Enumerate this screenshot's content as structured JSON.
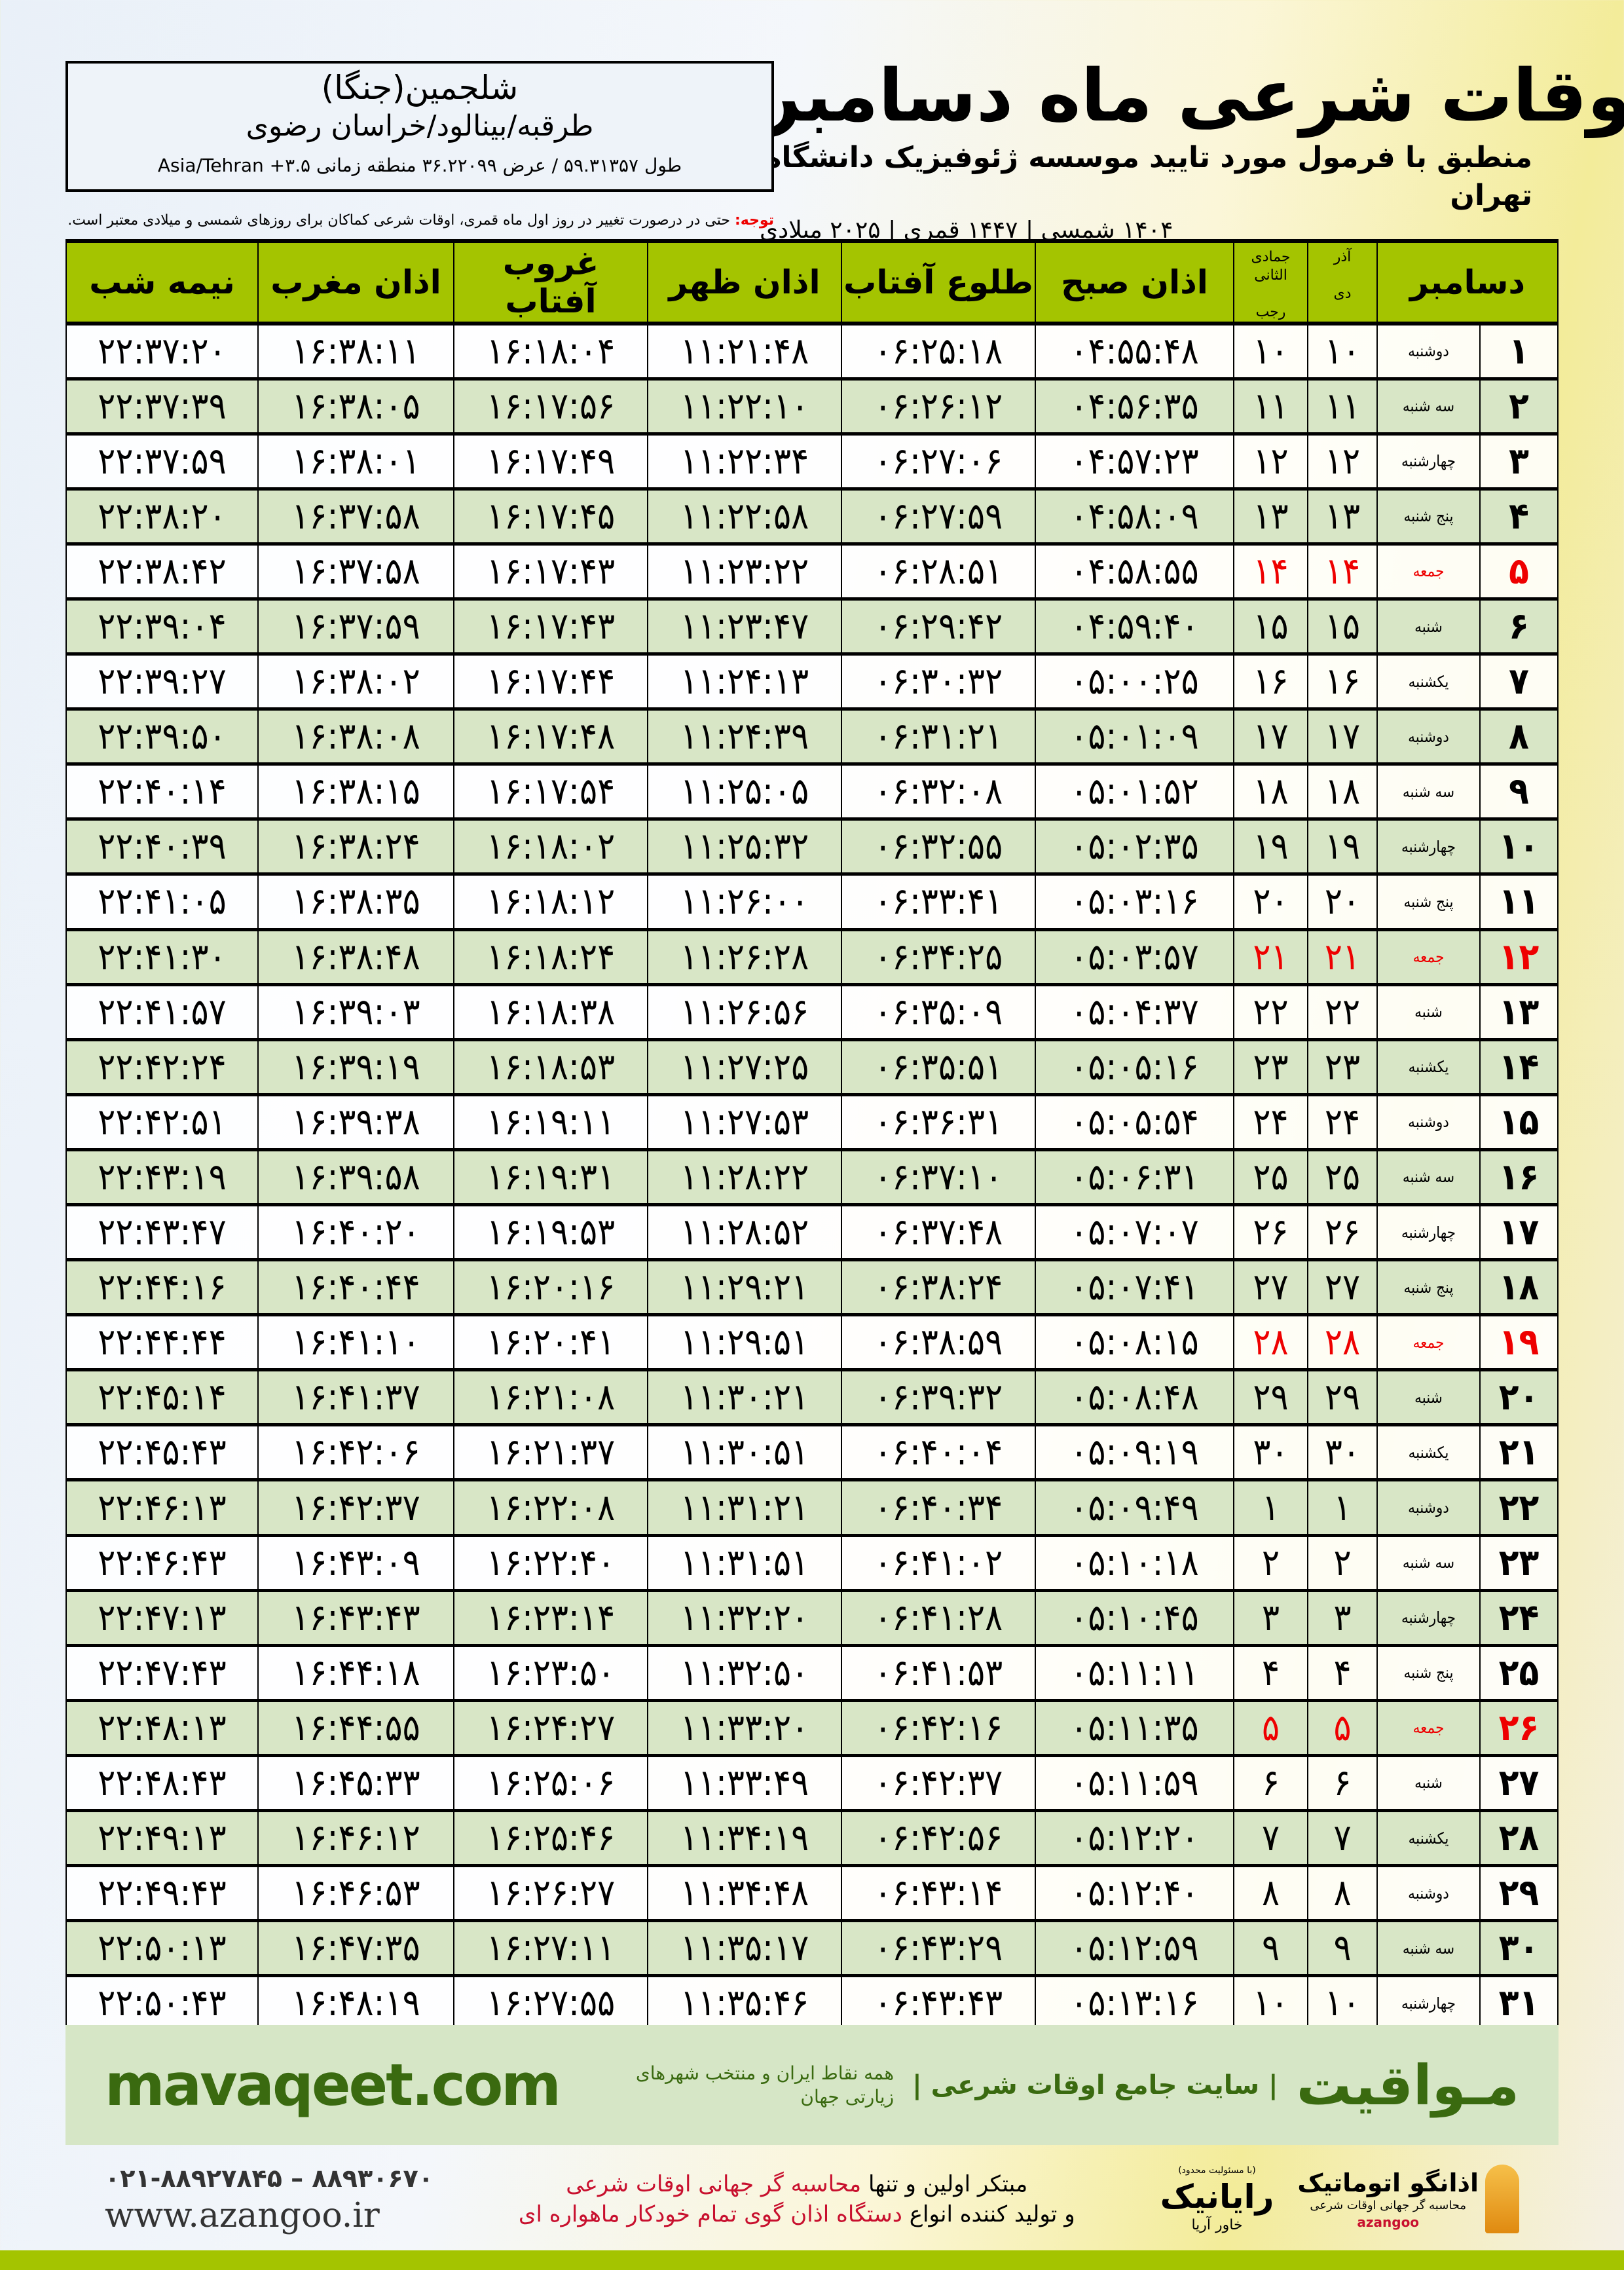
{
  "header": {
    "title": "اوقات شرعی ماه دسامبر",
    "subtitle": "منطبق با فرمول مورد تایید موسسه ژئوفیزیک دانشگاه تهران",
    "years": "۱۴۰۴ شمسی | ۱۴۴۷ قمری | ۲۰۲۵ میلادی"
  },
  "location": {
    "name": "شلجمین(جنگا)",
    "path": "طرقبه/بینالود/خراسان رضوی",
    "coords": "طول ۵۹.۳۱۳۵۷ / عرض ۳۶.۲۲۰۹۹ منطقه زمانی ۳.۵+ Asia/Tehran"
  },
  "note": {
    "label": "توجه:",
    "text": " حتی در درصورت تغییر در روز اول ماه قمری، اوقات شرعی کماکان برای روزهای شمسی و میلادی معتبر است."
  },
  "table": {
    "headers": {
      "day": "دسامبر",
      "dey_top": "آذر",
      "dey": "دی",
      "rajab_top": "جمادی الثانی",
      "rajab": "رجب",
      "sobh": "اذان صبح",
      "tolu": "طلوع آفتاب",
      "zohr": "اذان ظهر",
      "ghorub": "غروب آفتاب",
      "maghreb": "اذان مغرب",
      "nimeh": "نیمه شب"
    },
    "friday_color": "#e00000",
    "header_color": "#a4c400",
    "rows": [
      [
        "۱",
        "دوشنبه",
        "۱۰",
        "۱۰",
        "۰۴:۵۵:۴۸",
        "۰۶:۲۵:۱۸",
        "۱۱:۲۱:۴۸",
        "۱۶:۱۸:۰۴",
        "۱۶:۳۸:۱۱",
        "۲۲:۳۷:۲۰"
      ],
      [
        "۲",
        "سه شنبه",
        "۱۱",
        "۱۱",
        "۰۴:۵۶:۳۵",
        "۰۶:۲۶:۱۲",
        "۱۱:۲۲:۱۰",
        "۱۶:۱۷:۵۶",
        "۱۶:۳۸:۰۵",
        "۲۲:۳۷:۳۹"
      ],
      [
        "۳",
        "چهارشنبه",
        "۱۲",
        "۱۲",
        "۰۴:۵۷:۲۳",
        "۰۶:۲۷:۰۶",
        "۱۱:۲۲:۳۴",
        "۱۶:۱۷:۴۹",
        "۱۶:۳۸:۰۱",
        "۲۲:۳۷:۵۹"
      ],
      [
        "۴",
        "پنج شنبه",
        "۱۳",
        "۱۳",
        "۰۴:۵۸:۰۹",
        "۰۶:۲۷:۵۹",
        "۱۱:۲۲:۵۸",
        "۱۶:۱۷:۴۵",
        "۱۶:۳۷:۵۸",
        "۲۲:۳۸:۲۰"
      ],
      [
        "۵",
        "جمعه",
        "۱۴",
        "۱۴",
        "۰۴:۵۸:۵۵",
        "۰۶:۲۸:۵۱",
        "۱۱:۲۳:۲۲",
        "۱۶:۱۷:۴۳",
        "۱۶:۳۷:۵۸",
        "۲۲:۳۸:۴۲"
      ],
      [
        "۶",
        "شنبه",
        "۱۵",
        "۱۵",
        "۰۴:۵۹:۴۰",
        "۰۶:۲۹:۴۲",
        "۱۱:۲۳:۴۷",
        "۱۶:۱۷:۴۳",
        "۱۶:۳۷:۵۹",
        "۲۲:۳۹:۰۴"
      ],
      [
        "۷",
        "یکشنبه",
        "۱۶",
        "۱۶",
        "۰۵:۰۰:۲۵",
        "۰۶:۳۰:۳۲",
        "۱۱:۲۴:۱۳",
        "۱۶:۱۷:۴۴",
        "۱۶:۳۸:۰۲",
        "۲۲:۳۹:۲۷"
      ],
      [
        "۸",
        "دوشنبه",
        "۱۷",
        "۱۷",
        "۰۵:۰۱:۰۹",
        "۰۶:۳۱:۲۱",
        "۱۱:۲۴:۳۹",
        "۱۶:۱۷:۴۸",
        "۱۶:۳۸:۰۸",
        "۲۲:۳۹:۵۰"
      ],
      [
        "۹",
        "سه شنبه",
        "۱۸",
        "۱۸",
        "۰۵:۰۱:۵۲",
        "۰۶:۳۲:۰۸",
        "۱۱:۲۵:۰۵",
        "۱۶:۱۷:۵۴",
        "۱۶:۳۸:۱۵",
        "۲۲:۴۰:۱۴"
      ],
      [
        "۱۰",
        "چهارشنبه",
        "۱۹",
        "۱۹",
        "۰۵:۰۲:۳۵",
        "۰۶:۳۲:۵۵",
        "۱۱:۲۵:۳۲",
        "۱۶:۱۸:۰۲",
        "۱۶:۳۸:۲۴",
        "۲۲:۴۰:۳۹"
      ],
      [
        "۱۱",
        "پنج شنبه",
        "۲۰",
        "۲۰",
        "۰۵:۰۳:۱۶",
        "۰۶:۳۳:۴۱",
        "۱۱:۲۶:۰۰",
        "۱۶:۱۸:۱۲",
        "۱۶:۳۸:۳۵",
        "۲۲:۴۱:۰۵"
      ],
      [
        "۱۲",
        "جمعه",
        "۲۱",
        "۲۱",
        "۰۵:۰۳:۵۷",
        "۰۶:۳۴:۲۵",
        "۱۱:۲۶:۲۸",
        "۱۶:۱۸:۲۴",
        "۱۶:۳۸:۴۸",
        "۲۲:۴۱:۳۰"
      ],
      [
        "۱۳",
        "شنبه",
        "۲۲",
        "۲۲",
        "۰۵:۰۴:۳۷",
        "۰۶:۳۵:۰۹",
        "۱۱:۲۶:۵۶",
        "۱۶:۱۸:۳۸",
        "۱۶:۳۹:۰۳",
        "۲۲:۴۱:۵۷"
      ],
      [
        "۱۴",
        "یکشنبه",
        "۲۳",
        "۲۳",
        "۰۵:۰۵:۱۶",
        "۰۶:۳۵:۵۱",
        "۱۱:۲۷:۲۵",
        "۱۶:۱۸:۵۳",
        "۱۶:۳۹:۱۹",
        "۲۲:۴۲:۲۴"
      ],
      [
        "۱۵",
        "دوشنبه",
        "۲۴",
        "۲۴",
        "۰۵:۰۵:۵۴",
        "۰۶:۳۶:۳۱",
        "۱۱:۲۷:۵۳",
        "۱۶:۱۹:۱۱",
        "۱۶:۳۹:۳۸",
        "۲۲:۴۲:۵۱"
      ],
      [
        "۱۶",
        "سه شنبه",
        "۲۵",
        "۲۵",
        "۰۵:۰۶:۳۱",
        "۰۶:۳۷:۱۰",
        "۱۱:۲۸:۲۲",
        "۱۶:۱۹:۳۱",
        "۱۶:۳۹:۵۸",
        "۲۲:۴۳:۱۹"
      ],
      [
        "۱۷",
        "چهارشنبه",
        "۲۶",
        "۲۶",
        "۰۵:۰۷:۰۷",
        "۰۶:۳۷:۴۸",
        "۱۱:۲۸:۵۲",
        "۱۶:۱۹:۵۳",
        "۱۶:۴۰:۲۰",
        "۲۲:۴۳:۴۷"
      ],
      [
        "۱۸",
        "پنج شنبه",
        "۲۷",
        "۲۷",
        "۰۵:۰۷:۴۱",
        "۰۶:۳۸:۲۴",
        "۱۱:۲۹:۲۱",
        "۱۶:۲۰:۱۶",
        "۱۶:۴۰:۴۴",
        "۲۲:۴۴:۱۶"
      ],
      [
        "۱۹",
        "جمعه",
        "۲۸",
        "۲۸",
        "۰۵:۰۸:۱۵",
        "۰۶:۳۸:۵۹",
        "۱۱:۲۹:۵۱",
        "۱۶:۲۰:۴۱",
        "۱۶:۴۱:۱۰",
        "۲۲:۴۴:۴۴"
      ],
      [
        "۲۰",
        "شنبه",
        "۲۹",
        "۲۹",
        "۰۵:۰۸:۴۸",
        "۰۶:۳۹:۳۲",
        "۱۱:۳۰:۲۱",
        "۱۶:۲۱:۰۸",
        "۱۶:۴۱:۳۷",
        "۲۲:۴۵:۱۴"
      ],
      [
        "۲۱",
        "یکشنبه",
        "۳۰",
        "۳۰",
        "۰۵:۰۹:۱۹",
        "۰۶:۴۰:۰۴",
        "۱۱:۳۰:۵۱",
        "۱۶:۲۱:۳۷",
        "۱۶:۴۲:۰۶",
        "۲۲:۴۵:۴۳"
      ],
      [
        "۲۲",
        "دوشنبه",
        "۱",
        "۱",
        "۰۵:۰۹:۴۹",
        "۰۶:۴۰:۳۴",
        "۱۱:۳۱:۲۱",
        "۱۶:۲۲:۰۸",
        "۱۶:۴۲:۳۷",
        "۲۲:۴۶:۱۳"
      ],
      [
        "۲۳",
        "سه شنبه",
        "۲",
        "۲",
        "۰۵:۱۰:۱۸",
        "۰۶:۴۱:۰۲",
        "۱۱:۳۱:۵۱",
        "۱۶:۲۲:۴۰",
        "۱۶:۴۳:۰۹",
        "۲۲:۴۶:۴۳"
      ],
      [
        "۲۴",
        "چهارشنبه",
        "۳",
        "۳",
        "۰۵:۱۰:۴۵",
        "۰۶:۴۱:۲۸",
        "۱۱:۳۲:۲۰",
        "۱۶:۲۳:۱۴",
        "۱۶:۴۳:۴۳",
        "۲۲:۴۷:۱۳"
      ],
      [
        "۲۵",
        "پنج شنبه",
        "۴",
        "۴",
        "۰۵:۱۱:۱۱",
        "۰۶:۴۱:۵۳",
        "۱۱:۳۲:۵۰",
        "۱۶:۲۳:۵۰",
        "۱۶:۴۴:۱۸",
        "۲۲:۴۷:۴۳"
      ],
      [
        "۲۶",
        "جمعه",
        "۵",
        "۵",
        "۰۵:۱۱:۳۵",
        "۰۶:۴۲:۱۶",
        "۱۱:۳۳:۲۰",
        "۱۶:۲۴:۲۷",
        "۱۶:۴۴:۵۵",
        "۲۲:۴۸:۱۳"
      ],
      [
        "۲۷",
        "شنبه",
        "۶",
        "۶",
        "۰۵:۱۱:۵۹",
        "۰۶:۴۲:۳۷",
        "۱۱:۳۳:۴۹",
        "۱۶:۲۵:۰۶",
        "۱۶:۴۵:۳۳",
        "۲۲:۴۸:۴۳"
      ],
      [
        "۲۸",
        "یکشنبه",
        "۷",
        "۷",
        "۰۵:۱۲:۲۰",
        "۰۶:۴۲:۵۶",
        "۱۱:۳۴:۱۹",
        "۱۶:۲۵:۴۶",
        "۱۶:۴۶:۱۲",
        "۲۲:۴۹:۱۳"
      ],
      [
        "۲۹",
        "دوشنبه",
        "۸",
        "۸",
        "۰۵:۱۲:۴۰",
        "۰۶:۴۳:۱۴",
        "۱۱:۳۴:۴۸",
        "۱۶:۲۶:۲۷",
        "۱۶:۴۶:۵۳",
        "۲۲:۴۹:۴۳"
      ],
      [
        "۳۰",
        "سه شنبه",
        "۹",
        "۹",
        "۰۵:۱۲:۵۹",
        "۰۶:۴۳:۲۹",
        "۱۱:۳۵:۱۷",
        "۱۶:۲۷:۱۱",
        "۱۶:۴۷:۳۵",
        "۲۲:۵۰:۱۳"
      ],
      [
        "۳۱",
        "چهارشنبه",
        "۱۰",
        "۱۰",
        "۰۵:۱۳:۱۶",
        "۰۶:۴۳:۴۳",
        "۱۱:۳۵:۴۶",
        "۱۶:۲۷:۵۵",
        "۱۶:۴۸:۱۹",
        "۲۲:۵۰:۴۳"
      ]
    ]
  },
  "footer": {
    "site": "mavaqeet.com",
    "brand": "مـواقیت",
    "brand_sub": "| سایت جامع اوقات شرعی |",
    "brand_sub2": "همه نقاط ایران و منتخب شهرهای زیارتی جهان",
    "phone": "۰۲۱-۸۸۹۲۷۸۴۵ – ۸۸۹۳۰۶۷۰",
    "web": "www.azangoo.ir",
    "promo1a": "مبتکر اولین و تنها ",
    "promo1b": "محاسبه گر جهانی اوقات شرعی",
    "promo2a": "و تولید کننده انواع ",
    "promo2b": "دستگاه اذان گوی تمام خودکار ماهواره ای",
    "rayanik_small": "(با مسئولیت محدود)",
    "rayanik": "رایانیک",
    "rayanik_k": "خاور آریا",
    "azangoo": "اذانگو اتوماتیک",
    "azangoo_sub": "محاسبه گر جهانی اوقات شرعی",
    "azangoo_en": "azangoo"
  }
}
